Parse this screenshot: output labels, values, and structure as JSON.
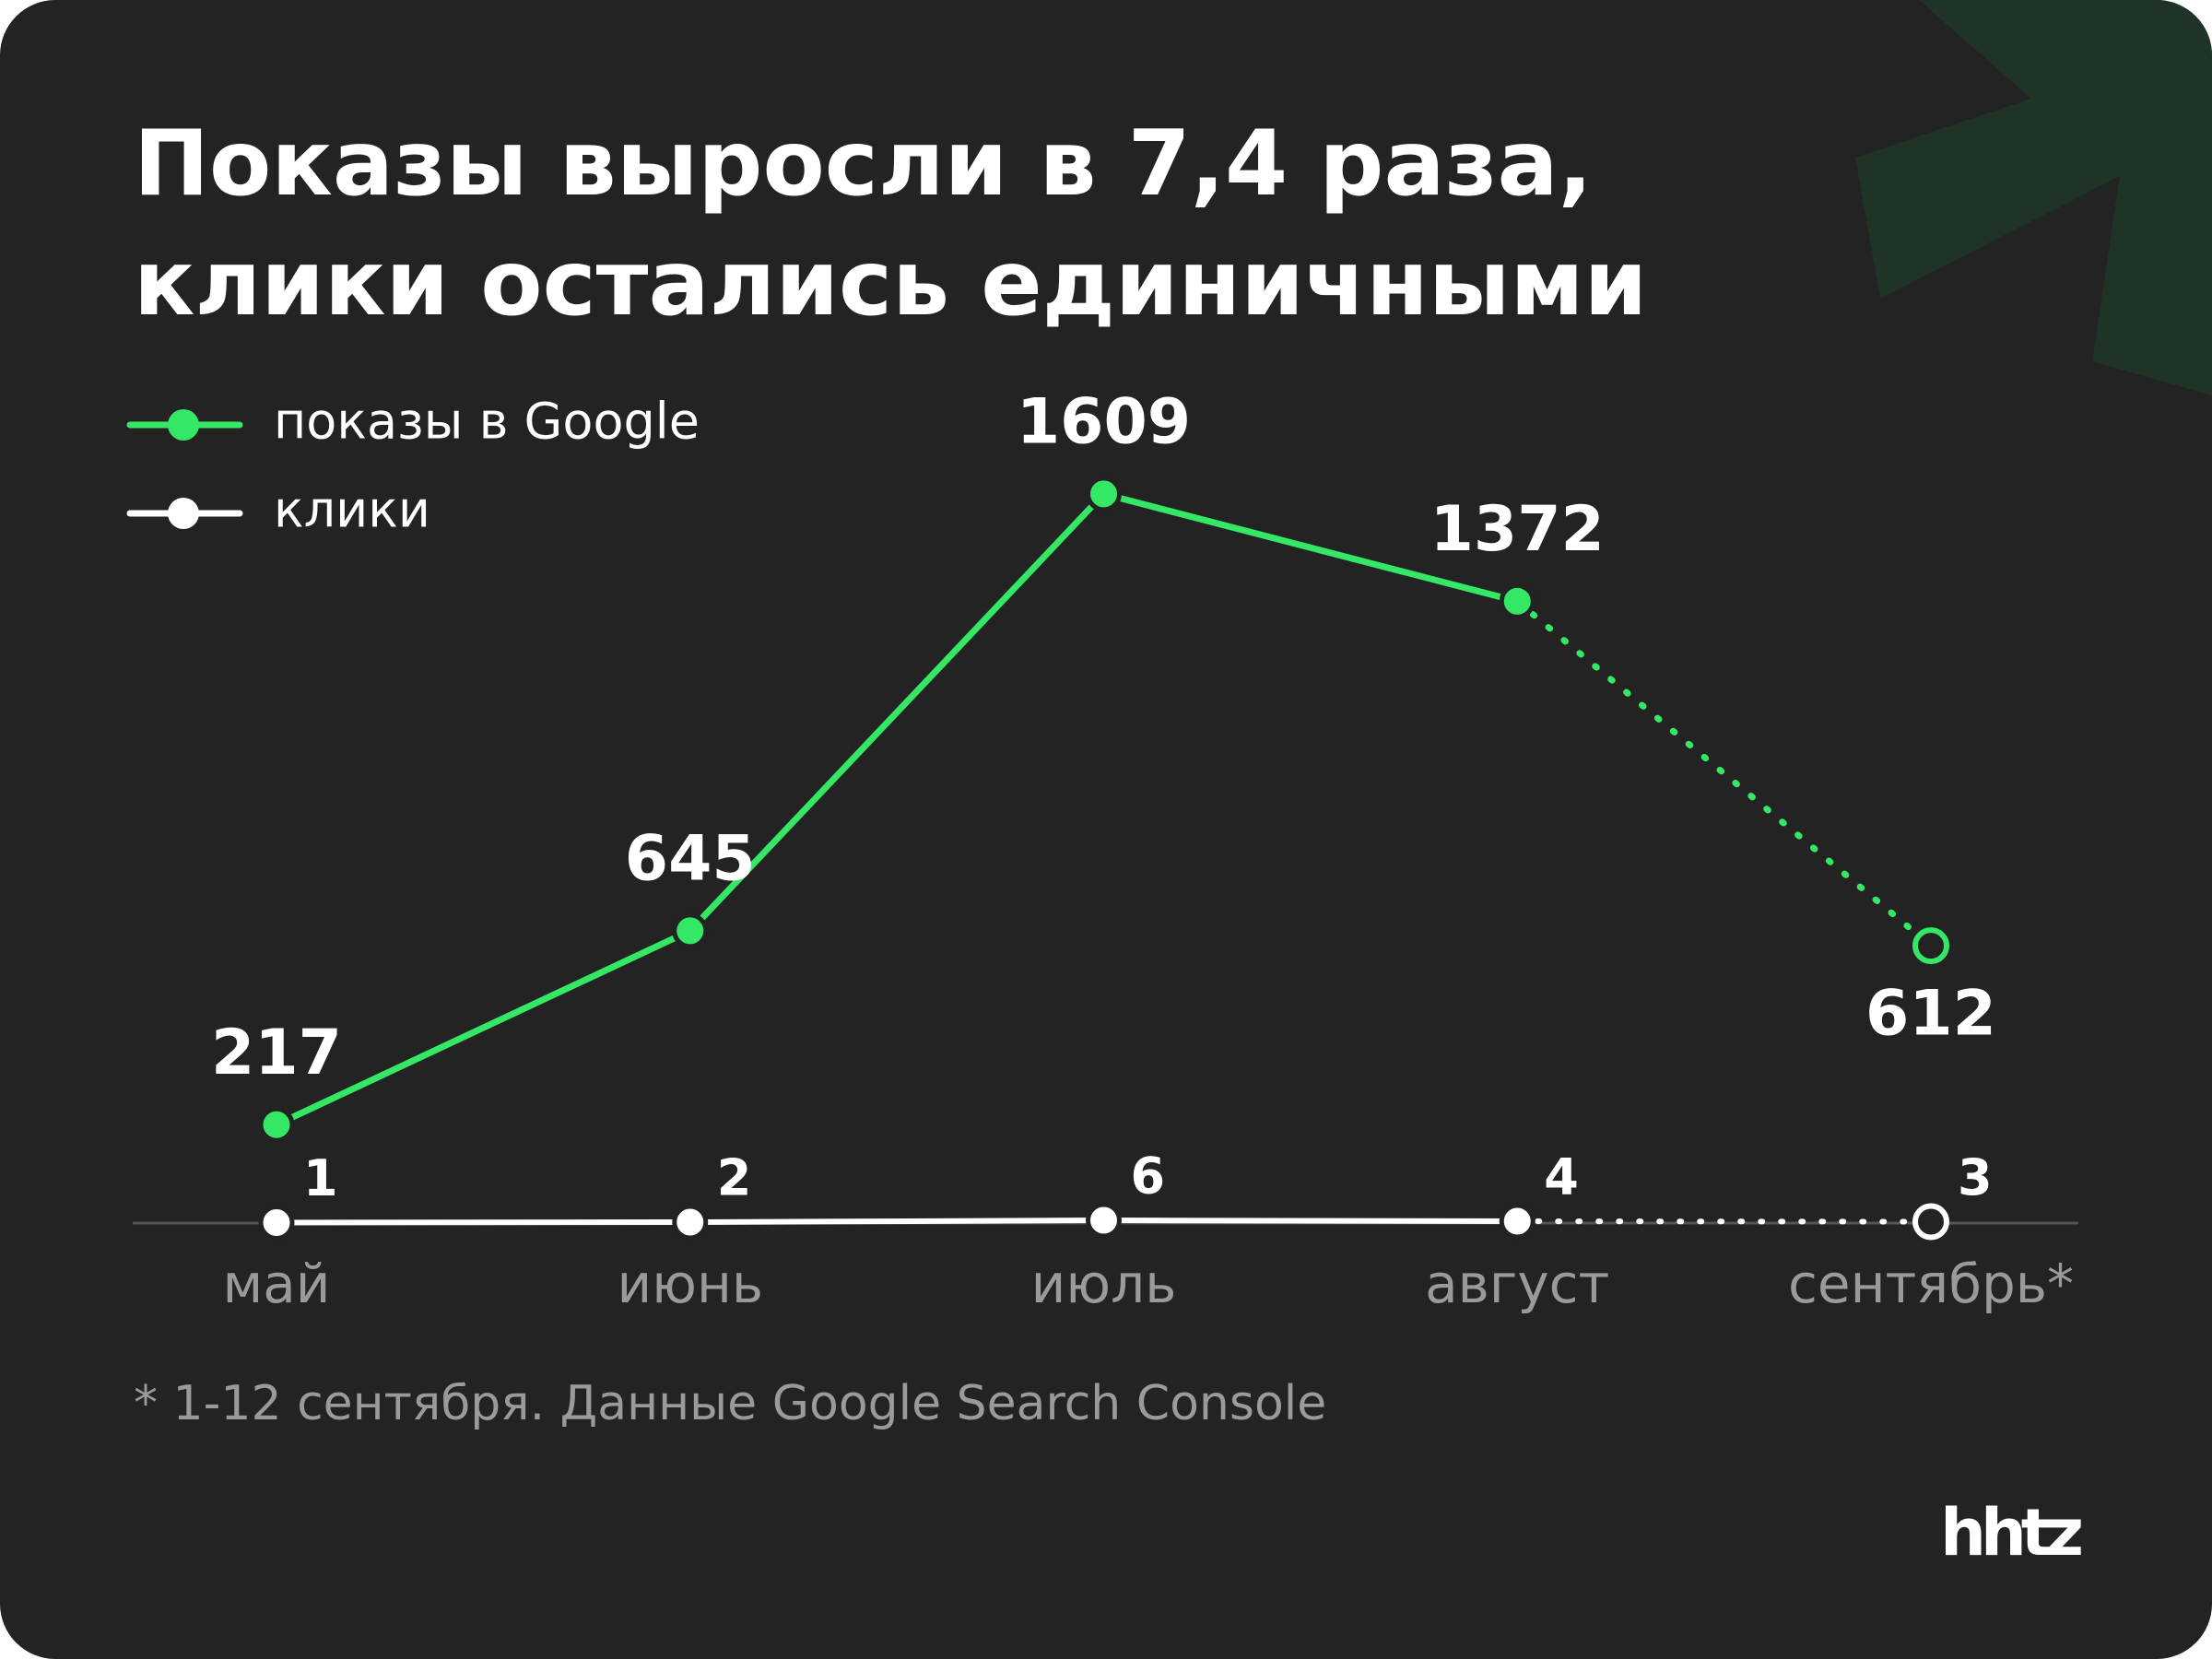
{
  "chart_data": {
    "type": "line",
    "title": [
      "Показы выросли в 7,4 раза,",
      "клики остались единичными"
    ],
    "categories": [
      "май",
      "июнь",
      "июль",
      "август",
      "сентябрь*"
    ],
    "series": [
      {
        "name": "показы в Google",
        "color": "#34e765",
        "values": [
          217,
          645,
          1609,
          1372,
          612
        ],
        "dashed_last_segment": true
      },
      {
        "name": "клики",
        "color": "#ffffff",
        "values": [
          1,
          2,
          6,
          4,
          3
        ],
        "dashed_last_segment": true
      }
    ],
    "ylim": [
      0,
      1800
    ],
    "note": "* 1-12 сентября. Данные Google Search Console",
    "logo": "hhtz"
  }
}
